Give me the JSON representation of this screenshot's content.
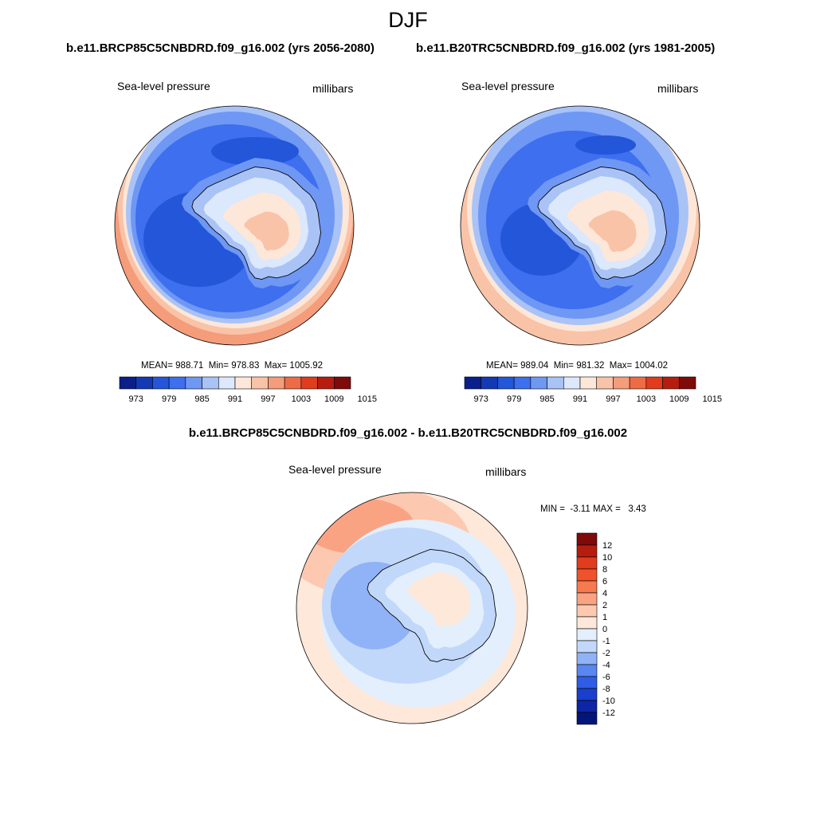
{
  "season": "DJF",
  "panels": [
    {
      "case_title": "b.e11.BRCP85C5CNBDRD.f09_g16.002 (yrs 2056-2080)",
      "variable": "Sea-level pressure",
      "units": "millibars",
      "stats": {
        "mean_label": "MEAN=",
        "mean": "988.71",
        "min_label": "Min=",
        "min": "978.83",
        "max_label": "Max=",
        "max": "1005.92"
      }
    },
    {
      "case_title": "b.e11.B20TRC5CNBDRD.f09_g16.002 (yrs 1981-2005)",
      "variable": "Sea-level pressure",
      "units": "millibars",
      "stats": {
        "mean_label": "MEAN=",
        "mean": "989.04",
        "min_label": "Min=",
        "min": "981.32",
        "max_label": "Max=",
        "max": "1004.02"
      }
    }
  ],
  "colorbar_abs": {
    "ticks": [
      "973",
      "979",
      "985",
      "991",
      "997",
      "1003",
      "1009",
      "1015"
    ],
    "colors": [
      "#0a1f8c",
      "#1439b5",
      "#2356d9",
      "#3d6fee",
      "#6f97f4",
      "#a9c3f7",
      "#dce8fb",
      "#fde7d8",
      "#f9c3a8",
      "#f59c7a",
      "#ee6b45",
      "#e03c1d",
      "#b71d0f",
      "#7f0a0a"
    ]
  },
  "diff": {
    "title": "b.e11.BRCP85C5CNBDRD.f09_g16.002 - b.e11.B20TRC5CNBDRD.f09_g16.002",
    "variable": "Sea-level pressure",
    "units": "millibars",
    "stats": {
      "min_label": "MIN =",
      "min": "-3.11",
      "max_label": "MAX =",
      "max": "3.43"
    },
    "colorbar": {
      "ticks": [
        "12",
        "10",
        "8",
        "6",
        "4",
        "2",
        "1",
        "0",
        "-1",
        "-2",
        "-4",
        "-6",
        "-8",
        "-10",
        "-12"
      ],
      "colors": [
        "#7f0a0a",
        "#b71d0f",
        "#e03c1d",
        "#f0522a",
        "#f57a4f",
        "#f9a383",
        "#fcc9b0",
        "#fde8da",
        "#e3effc",
        "#c2d8fa",
        "#8fb3f6",
        "#5a86f0",
        "#2f5de6",
        "#1a3fcc",
        "#0c26a5",
        "#04157a"
      ]
    }
  },
  "palette": {
    "deep_blue": "#1f4fe0",
    "mid_blue": "#3a6aeb",
    "blue": "#5a86f0",
    "light_blue": "#8fb3f6",
    "pale_blue": "#c6dafa",
    "near_white": "#e6effc",
    "cream": "#fde8da",
    "salmon": "#f9c3a8",
    "orange": "#f59c7a",
    "dark_orange": "#ee6b45"
  }
}
